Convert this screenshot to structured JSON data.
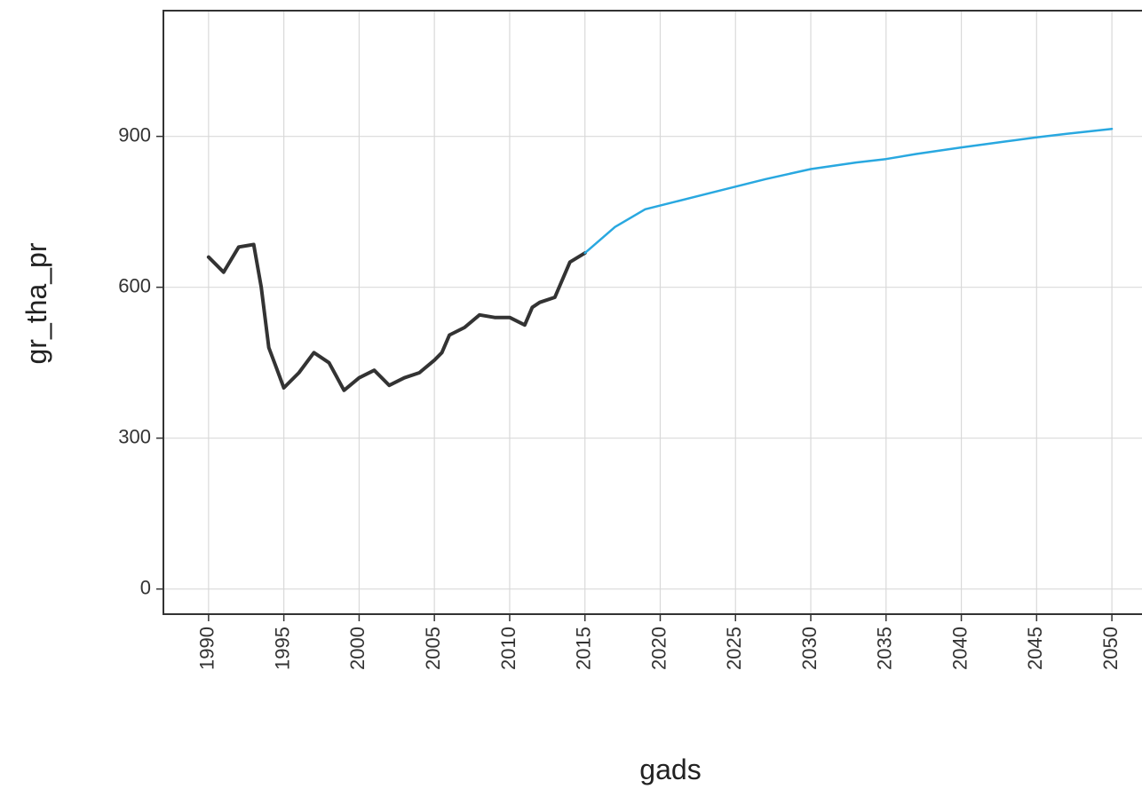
{
  "chart_data": {
    "type": "line",
    "title": "",
    "xlabel": "gads",
    "ylabel": "gr_tha_pr",
    "xlim": [
      1987,
      2052
    ],
    "ylim": [
      -50,
      1150
    ],
    "x_ticks": [
      1990,
      1995,
      2000,
      2005,
      2010,
      2015,
      2020,
      2025,
      2030,
      2035,
      2040,
      2045,
      2050
    ],
    "y_ticks": [
      0,
      300,
      600,
      900
    ],
    "grid": true,
    "legend": "none",
    "series": [
      {
        "color": "#333333",
        "x": [
          1990,
          1991,
          1992,
          1993,
          1993.5,
          1994,
          1994.5,
          1995,
          1996,
          1997,
          1998,
          1999,
          2000,
          2001,
          2002,
          2003,
          2004,
          2005,
          2005.5,
          2006,
          2007,
          2008,
          2009,
          2010,
          2011,
          2011.5,
          2012,
          2013,
          2014,
          2015
        ],
        "values": [
          660,
          630,
          680,
          685,
          600,
          480,
          440,
          400,
          430,
          470,
          450,
          395,
          420,
          435,
          405,
          420,
          430,
          455,
          470,
          505,
          520,
          545,
          540,
          540,
          525,
          560,
          570,
          580,
          650,
          668
        ]
      },
      {
        "color": "#29a8e0",
        "x": [
          2015,
          2017,
          2019,
          2021,
          2023,
          2025,
          2027,
          2030,
          2033,
          2035,
          2037,
          2040,
          2043,
          2045,
          2047,
          2050
        ],
        "values": [
          668,
          720,
          755,
          770,
          785,
          800,
          815,
          835,
          848,
          855,
          865,
          878,
          890,
          898,
          905,
          915
        ]
      }
    ]
  }
}
